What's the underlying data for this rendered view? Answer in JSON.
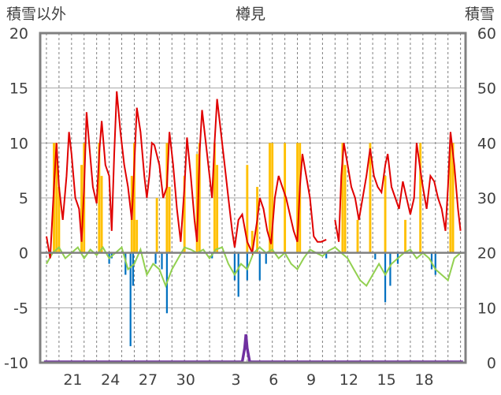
{
  "chart_data": {
    "type": "bar+line",
    "title": "樽見",
    "left_axis_label": "積雪以外",
    "right_axis_label": "積雪",
    "left_axis": {
      "min": -10,
      "max": 20,
      "step": 5,
      "tick_labels": [
        "-10",
        "-5",
        "0",
        "5",
        "10",
        "15",
        "20"
      ]
    },
    "right_axis": {
      "min": 0,
      "max": 60,
      "step": 10,
      "tick_labels": [
        "0",
        "10",
        "20",
        "30",
        "40",
        "50",
        "60"
      ]
    },
    "x_tick_labels": [
      "21",
      "24",
      "27",
      "30",
      "3",
      "6",
      "9",
      "12",
      "15",
      "18"
    ],
    "grid": {
      "horizontal": true,
      "vertical_dashed": true
    },
    "colors": {
      "temperature": "#e00000",
      "precipitation": "#ffc000",
      "dew_or_diff": "#92d050",
      "negative_bars": "#0070c0",
      "snow_depth": "#7030a0"
    },
    "series": [
      {
        "key": "temperature",
        "points": [
          [
            19.0,
            1.5
          ],
          [
            19.3,
            -0.5
          ],
          [
            19.6,
            6.0
          ],
          [
            19.8,
            10.0
          ],
          [
            20.0,
            6.0
          ],
          [
            20.3,
            3.0
          ],
          [
            20.6,
            7.0
          ],
          [
            20.8,
            11.0
          ],
          [
            21.0,
            9.0
          ],
          [
            21.3,
            5.0
          ],
          [
            21.6,
            4.0
          ],
          [
            21.8,
            1.0
          ],
          [
            22.0,
            6.0
          ],
          [
            22.2,
            12.8
          ],
          [
            22.4,
            10.0
          ],
          [
            22.7,
            6.0
          ],
          [
            23.0,
            4.5
          ],
          [
            23.2,
            9.0
          ],
          [
            23.4,
            12.0
          ],
          [
            23.7,
            8.0
          ],
          [
            24.0,
            7.0
          ],
          [
            24.2,
            2.0
          ],
          [
            24.4,
            9.0
          ],
          [
            24.6,
            14.7
          ],
          [
            24.9,
            11.0
          ],
          [
            25.2,
            8.0
          ],
          [
            25.5,
            6.0
          ],
          [
            25.8,
            3.0
          ],
          [
            26.0,
            8.0
          ],
          [
            26.2,
            13.2
          ],
          [
            26.5,
            11.0
          ],
          [
            26.8,
            7.0
          ],
          [
            27.0,
            5.0
          ],
          [
            27.2,
            7.0
          ],
          [
            27.4,
            10.0
          ],
          [
            27.6,
            9.8
          ],
          [
            28.0,
            8.0
          ],
          [
            28.3,
            5.0
          ],
          [
            28.6,
            6.0
          ],
          [
            28.8,
            11.0
          ],
          [
            29.1,
            8.0
          ],
          [
            29.4,
            4.0
          ],
          [
            29.7,
            1.0
          ],
          [
            30.0,
            6.0
          ],
          [
            30.2,
            10.5
          ],
          [
            30.5,
            7.0
          ],
          [
            30.8,
            3.0
          ],
          [
            31.0,
            1.0
          ],
          [
            31.2,
            9.0
          ],
          [
            31.4,
            13.0
          ],
          [
            31.7,
            10.0
          ],
          [
            32.0,
            7.0
          ],
          [
            32.2,
            5.0
          ],
          [
            32.4,
            10.0
          ],
          [
            32.6,
            14.0
          ],
          [
            32.9,
            11.0
          ],
          [
            33.2,
            8.0
          ],
          [
            33.5,
            5.0
          ],
          [
            33.8,
            2.0
          ],
          [
            34.0,
            0.5
          ],
          [
            34.3,
            3.0
          ],
          [
            34.6,
            3.5
          ],
          [
            35.0,
            1.0
          ],
          [
            35.4,
            0.0
          ],
          [
            35.8,
            3.0
          ],
          [
            36.0,
            5.0
          ],
          [
            36.3,
            4.0
          ],
          [
            36.6,
            2.0
          ],
          [
            36.9,
            0.8
          ],
          [
            37.2,
            5.0
          ],
          [
            37.5,
            7.0
          ],
          [
            37.8,
            6.0
          ],
          [
            38.1,
            5.0
          ],
          [
            38.4,
            3.5
          ],
          [
            38.7,
            2.0
          ],
          [
            39.0,
            1.0
          ],
          [
            39.2,
            6.0
          ],
          [
            39.4,
            9.0
          ],
          [
            39.7,
            7.0
          ],
          [
            40.0,
            5.0
          ],
          [
            40.3,
            1.5
          ],
          [
            40.6,
            1.0
          ],
          [
            40.9,
            1.0
          ],
          [
            41.3,
            1.2
          ]
        ],
        "segment2": [
          [
            42.0,
            3.0
          ],
          [
            42.3,
            1.0
          ],
          [
            42.5,
            7.0
          ],
          [
            42.7,
            10.0
          ],
          [
            43.0,
            8.0
          ],
          [
            43.3,
            6.0
          ],
          [
            43.6,
            5.0
          ],
          [
            43.9,
            3.0
          ],
          [
            44.2,
            5.0
          ],
          [
            44.5,
            7.0
          ],
          [
            44.8,
            9.5
          ],
          [
            45.1,
            7.0
          ],
          [
            45.4,
            6.0
          ],
          [
            45.7,
            5.5
          ],
          [
            46.0,
            8.0
          ],
          [
            46.2,
            9.0
          ],
          [
            46.5,
            6.0
          ],
          [
            46.8,
            5.0
          ],
          [
            47.1,
            4.0
          ],
          [
            47.4,
            6.5
          ],
          [
            47.7,
            5.0
          ],
          [
            48.0,
            3.5
          ],
          [
            48.3,
            5.0
          ],
          [
            48.5,
            10.0
          ],
          [
            48.8,
            7.5
          ],
          [
            49.0,
            6.0
          ],
          [
            49.3,
            4.0
          ],
          [
            49.6,
            7.0
          ],
          [
            49.9,
            6.5
          ],
          [
            50.2,
            5.0
          ],
          [
            50.5,
            4.0
          ],
          [
            50.8,
            2.0
          ],
          [
            51.0,
            6.0
          ],
          [
            51.2,
            11.0
          ],
          [
            51.5,
            8.0
          ],
          [
            51.8,
            4.0
          ],
          [
            52.0,
            2.0
          ]
        ]
      },
      {
        "key": "snow_depth",
        "points": [
          [
            18.8,
            0
          ],
          [
            34.6,
            0
          ],
          [
            34.8,
            2.5
          ],
          [
            34.9,
            5.0
          ],
          [
            35.0,
            2.5
          ],
          [
            35.2,
            0
          ],
          [
            52.2,
            0
          ]
        ]
      }
    ],
    "precip_bars": [
      [
        19.6,
        10
      ],
      [
        19.8,
        10
      ],
      [
        20.0,
        6
      ],
      [
        21.8,
        8
      ],
      [
        22.0,
        10
      ],
      [
        23.2,
        10
      ],
      [
        23.4,
        7
      ],
      [
        25.8,
        7
      ],
      [
        26.0,
        10
      ],
      [
        26.2,
        3
      ],
      [
        27.8,
        5
      ],
      [
        28.6,
        10
      ],
      [
        28.8,
        6
      ],
      [
        30.0,
        7
      ],
      [
        31.0,
        9
      ],
      [
        31.2,
        10
      ],
      [
        32.4,
        10
      ],
      [
        32.6,
        8
      ],
      [
        35.0,
        8
      ],
      [
        35.4,
        2
      ],
      [
        35.8,
        6
      ],
      [
        36.8,
        10
      ],
      [
        37.0,
        10
      ],
      [
        38.0,
        10
      ],
      [
        39.0,
        10
      ],
      [
        39.2,
        10
      ],
      [
        42.6,
        10
      ],
      [
        42.8,
        8
      ],
      [
        43.8,
        3
      ],
      [
        44.8,
        10
      ],
      [
        46.0,
        7
      ],
      [
        47.6,
        3
      ],
      [
        48.8,
        10
      ],
      [
        51.2,
        10
      ],
      [
        51.4,
        10
      ]
    ],
    "negative_bars": [
      [
        24.0,
        -1.0
      ],
      [
        24.2,
        -0.5
      ],
      [
        25.3,
        -2.0
      ],
      [
        25.7,
        -8.5
      ],
      [
        25.9,
        -3.0
      ],
      [
        27.7,
        -1.0
      ],
      [
        28.2,
        -1.5
      ],
      [
        28.6,
        -5.5
      ],
      [
        32.2,
        -0.5
      ],
      [
        34.0,
        -2.5
      ],
      [
        34.3,
        -4.0
      ],
      [
        35.0,
        -2.5
      ],
      [
        36.0,
        -2.5
      ],
      [
        36.5,
        -1.0
      ],
      [
        41.3,
        -0.5
      ],
      [
        45.2,
        -0.6
      ],
      [
        46.0,
        -4.5
      ],
      [
        46.4,
        -3.0
      ],
      [
        47.0,
        -1.0
      ],
      [
        49.7,
        -1.5
      ],
      [
        50.0,
        -2.0
      ]
    ],
    "dew_or_diff_line": [
      [
        19.0,
        -1.0
      ],
      [
        19.5,
        0.0
      ],
      [
        20.0,
        0.5
      ],
      [
        20.5,
        -0.5
      ],
      [
        21.0,
        0.0
      ],
      [
        21.5,
        0.5
      ],
      [
        22.0,
        -0.5
      ],
      [
        22.5,
        0.3
      ],
      [
        23.0,
        -0.2
      ],
      [
        23.5,
        0.5
      ],
      [
        24.0,
        -0.5
      ],
      [
        24.5,
        0.0
      ],
      [
        25.0,
        0.5
      ],
      [
        25.5,
        -1.5
      ],
      [
        26.0,
        -1.0
      ],
      [
        26.5,
        0.3
      ],
      [
        27.0,
        -2.0
      ],
      [
        27.5,
        -1.0
      ],
      [
        28.0,
        -1.5
      ],
      [
        28.5,
        -3.0
      ],
      [
        29.0,
        -1.5
      ],
      [
        29.5,
        -0.5
      ],
      [
        30.0,
        0.5
      ],
      [
        30.5,
        0.3
      ],
      [
        31.0,
        0.0
      ],
      [
        31.5,
        0.3
      ],
      [
        32.0,
        -0.5
      ],
      [
        32.5,
        0.3
      ],
      [
        33.0,
        0.5
      ],
      [
        33.5,
        -1.0
      ],
      [
        34.0,
        -2.0
      ],
      [
        34.5,
        -1.0
      ],
      [
        35.0,
        -1.5
      ],
      [
        35.5,
        0.0
      ],
      [
        36.0,
        0.5
      ],
      [
        36.5,
        0.0
      ],
      [
        37.0,
        0.3
      ],
      [
        37.5,
        -0.5
      ],
      [
        38.0,
        0.0
      ],
      [
        38.5,
        -1.0
      ],
      [
        39.0,
        -1.5
      ],
      [
        39.5,
        -0.5
      ],
      [
        40.0,
        0.3
      ],
      [
        40.5,
        0.0
      ],
      [
        41.0,
        -0.3
      ],
      [
        41.5,
        0.2
      ],
      [
        42.0,
        0.5
      ],
      [
        42.5,
        0.0
      ],
      [
        43.0,
        -0.5
      ],
      [
        43.5,
        -1.5
      ],
      [
        44.0,
        -2.5
      ],
      [
        44.5,
        -3.0
      ],
      [
        45.0,
        -2.0
      ],
      [
        45.5,
        -1.0
      ],
      [
        46.0,
        -2.0
      ],
      [
        46.5,
        -1.0
      ],
      [
        47.0,
        -0.5
      ],
      [
        47.5,
        0.0
      ],
      [
        48.0,
        0.3
      ],
      [
        48.5,
        -0.5
      ],
      [
        49.0,
        0.0
      ],
      [
        49.5,
        -0.5
      ],
      [
        50.0,
        -1.5
      ],
      [
        50.5,
        -2.0
      ],
      [
        51.0,
        -2.5
      ],
      [
        51.5,
        -0.5
      ],
      [
        52.0,
        0.0
      ],
      [
        52.2,
        0.0
      ]
    ]
  }
}
